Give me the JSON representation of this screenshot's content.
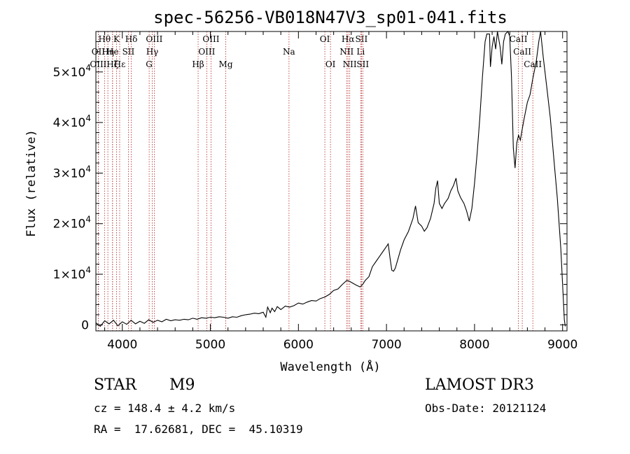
{
  "chart_data": {
    "type": "line",
    "title": "spec-56256-VB018N47V3_sp01-041.fits",
    "xlabel": "Wavelength (Å)",
    "ylabel": "Flux (relative)",
    "xlim": [
      3700,
      9050
    ],
    "ylim": [
      -1200,
      58000
    ],
    "x_ticks": [
      4000,
      5000,
      6000,
      7000,
      8000,
      9000
    ],
    "x_tick_labels": [
      "4000",
      "5000",
      "6000",
      "7000",
      "8000",
      "9000"
    ],
    "y_ticks": [
      0,
      10000,
      20000,
      30000,
      40000,
      50000
    ],
    "y_tick_labels": [
      {
        "mant": "0",
        "exp": ""
      },
      {
        "mant": "1×10",
        "exp": "4"
      },
      {
        "mant": "2×10",
        "exp": "4"
      },
      {
        "mant": "3×10",
        "exp": "4"
      },
      {
        "mant": "4×10",
        "exp": "4"
      },
      {
        "mant": "5×10",
        "exp": "4"
      }
    ],
    "lines": [
      {
        "label": "Hθ",
        "x": 3798,
        "row": 0
      },
      {
        "label": "OII",
        "x": 3727,
        "row": 1
      },
      {
        "label": "OIII",
        "x": 3727,
        "row": 2
      },
      {
        "label": "Hη",
        "x": 3836,
        "row": 1
      },
      {
        "label": "He",
        "x": 3889,
        "row": 1
      },
      {
        "label": "Hζ",
        "x": 3889,
        "row": 2
      },
      {
        "label": "K",
        "x": 3934,
        "row": 0
      },
      {
        "label": "Hε",
        "x": 3970,
        "row": 2
      },
      {
        "label": "SII",
        "x": 4069,
        "row": 1
      },
      {
        "label": "Hδ",
        "x": 4102,
        "row": 0
      },
      {
        "label": "Hγ",
        "x": 4340,
        "row": 1
      },
      {
        "label": "OIII",
        "x": 4363,
        "row": 0
      },
      {
        "label": "G",
        "x": 4305,
        "row": 2
      },
      {
        "label": "Hβ",
        "x": 4861,
        "row": 2
      },
      {
        "label": "OIII",
        "x": 4959,
        "row": 1
      },
      {
        "label": "OIII",
        "x": 5007,
        "row": 0
      },
      {
        "label": "Mg",
        "x": 5175,
        "row": 2
      },
      {
        "label": "Na",
        "x": 5893,
        "row": 1
      },
      {
        "label": "OI",
        "x": 6300,
        "row": 0
      },
      {
        "label": "OI",
        "x": 6364,
        "row": 2
      },
      {
        "label": "NII",
        "x": 6548,
        "row": 1
      },
      {
        "label": "Hα",
        "x": 6563,
        "row": 0
      },
      {
        "label": "NII",
        "x": 6583,
        "row": 2
      },
      {
        "label": "Li",
        "x": 6707,
        "row": 1
      },
      {
        "label": "SII",
        "x": 6716,
        "row": 0
      },
      {
        "label": "SII",
        "x": 6731,
        "row": 2
      },
      {
        "label": "CaII",
        "x": 8498,
        "row": 0
      },
      {
        "label": "CaII",
        "x": 8542,
        "row": 1
      },
      {
        "label": "CaII",
        "x": 8662,
        "row": 2
      }
    ],
    "series": [
      {
        "name": "flux",
        "points": [
          [
            3700,
            400
          ],
          [
            3750,
            -300
          ],
          [
            3800,
            800
          ],
          [
            3850,
            200
          ],
          [
            3900,
            900
          ],
          [
            3950,
            -200
          ],
          [
            4000,
            600
          ],
          [
            4050,
            100
          ],
          [
            4100,
            900
          ],
          [
            4150,
            200
          ],
          [
            4200,
            700
          ],
          [
            4250,
            300
          ],
          [
            4300,
            1000
          ],
          [
            4350,
            500
          ],
          [
            4400,
            900
          ],
          [
            4450,
            600
          ],
          [
            4500,
            1100
          ],
          [
            4550,
            800
          ],
          [
            4600,
            1000
          ],
          [
            4650,
            900
          ],
          [
            4700,
            1100
          ],
          [
            4750,
            1000
          ],
          [
            4800,
            1300
          ],
          [
            4850,
            1100
          ],
          [
            4900,
            1400
          ],
          [
            4950,
            1300
          ],
          [
            5000,
            1500
          ],
          [
            5050,
            1400
          ],
          [
            5100,
            1600
          ],
          [
            5150,
            1500
          ],
          [
            5200,
            1300
          ],
          [
            5250,
            1600
          ],
          [
            5300,
            1500
          ],
          [
            5350,
            1800
          ],
          [
            5400,
            2000
          ],
          [
            5450,
            2100
          ],
          [
            5500,
            2300
          ],
          [
            5550,
            2200
          ],
          [
            5600,
            2500
          ],
          [
            5630,
            1500
          ],
          [
            5650,
            3500
          ],
          [
            5680,
            2400
          ],
          [
            5700,
            3300
          ],
          [
            5730,
            2600
          ],
          [
            5760,
            3600
          ],
          [
            5800,
            3000
          ],
          [
            5850,
            3700
          ],
          [
            5900,
            3500
          ],
          [
            5950,
            3800
          ],
          [
            6000,
            4300
          ],
          [
            6050,
            4100
          ],
          [
            6100,
            4500
          ],
          [
            6150,
            4800
          ],
          [
            6200,
            4700
          ],
          [
            6250,
            5200
          ],
          [
            6300,
            5500
          ],
          [
            6350,
            6000
          ],
          [
            6400,
            6800
          ],
          [
            6450,
            7100
          ],
          [
            6500,
            8000
          ],
          [
            6550,
            8800
          ],
          [
            6580,
            8600
          ],
          [
            6620,
            8200
          ],
          [
            6660,
            7800
          ],
          [
            6700,
            7500
          ],
          [
            6730,
            8000
          ],
          [
            6760,
            8800
          ],
          [
            6800,
            9500
          ],
          [
            6840,
            11500
          ],
          [
            6880,
            12500
          ],
          [
            6920,
            13500
          ],
          [
            6960,
            14500
          ],
          [
            7000,
            15500
          ],
          [
            7020,
            16000
          ],
          [
            7040,
            13200
          ],
          [
            7060,
            10800
          ],
          [
            7080,
            10600
          ],
          [
            7100,
            11200
          ],
          [
            7130,
            13000
          ],
          [
            7160,
            14800
          ],
          [
            7200,
            16800
          ],
          [
            7250,
            18500
          ],
          [
            7300,
            21000
          ],
          [
            7330,
            23500
          ],
          [
            7360,
            20200
          ],
          [
            7400,
            19500
          ],
          [
            7430,
            18500
          ],
          [
            7460,
            19200
          ],
          [
            7500,
            21000
          ],
          [
            7540,
            24000
          ],
          [
            7560,
            27000
          ],
          [
            7580,
            28500
          ],
          [
            7600,
            24000
          ],
          [
            7630,
            23000
          ],
          [
            7660,
            24000
          ],
          [
            7700,
            25000
          ],
          [
            7730,
            26500
          ],
          [
            7760,
            27500
          ],
          [
            7790,
            29000
          ],
          [
            7810,
            26500
          ],
          [
            7840,
            25200
          ],
          [
            7880,
            24000
          ],
          [
            7910,
            22500
          ],
          [
            7940,
            20500
          ],
          [
            7970,
            23000
          ],
          [
            8000,
            28000
          ],
          [
            8030,
            34000
          ],
          [
            8060,
            41000
          ],
          [
            8090,
            49000
          ],
          [
            8120,
            56000
          ],
          [
            8140,
            57500
          ],
          [
            8170,
            57500
          ],
          [
            8180,
            51000
          ],
          [
            8200,
            55000
          ],
          [
            8220,
            57000
          ],
          [
            8240,
            54500
          ],
          [
            8260,
            58000
          ],
          [
            8290,
            55000
          ],
          [
            8310,
            51500
          ],
          [
            8330,
            56000
          ],
          [
            8350,
            57500
          ],
          [
            8380,
            58000
          ],
          [
            8400,
            57000
          ],
          [
            8420,
            49000
          ],
          [
            8440,
            35000
          ],
          [
            8460,
            31000
          ],
          [
            8480,
            36000
          ],
          [
            8500,
            37500
          ],
          [
            8520,
            36500
          ],
          [
            8540,
            38500
          ],
          [
            8560,
            40500
          ],
          [
            8600,
            44000
          ],
          [
            8630,
            45500
          ],
          [
            8660,
            48500
          ],
          [
            8700,
            52000
          ],
          [
            8730,
            56000
          ],
          [
            8750,
            58000
          ],
          [
            8780,
            53000
          ],
          [
            8820,
            47000
          ],
          [
            8860,
            41000
          ],
          [
            8900,
            33000
          ],
          [
            8940,
            25000
          ],
          [
            8980,
            15000
          ],
          [
            9000,
            8000
          ],
          [
            9020,
            1000
          ],
          [
            9030,
            -300
          ]
        ]
      }
    ]
  },
  "info": {
    "object_class": "STAR",
    "subclass": "M9",
    "survey": "LAMOST DR3",
    "redshift": "cz = 148.4 ± 4.2 km/s",
    "obs_date": "Obs-Date: 20121124",
    "coords": "RA =  17.62681, DEC =  45.10319"
  }
}
